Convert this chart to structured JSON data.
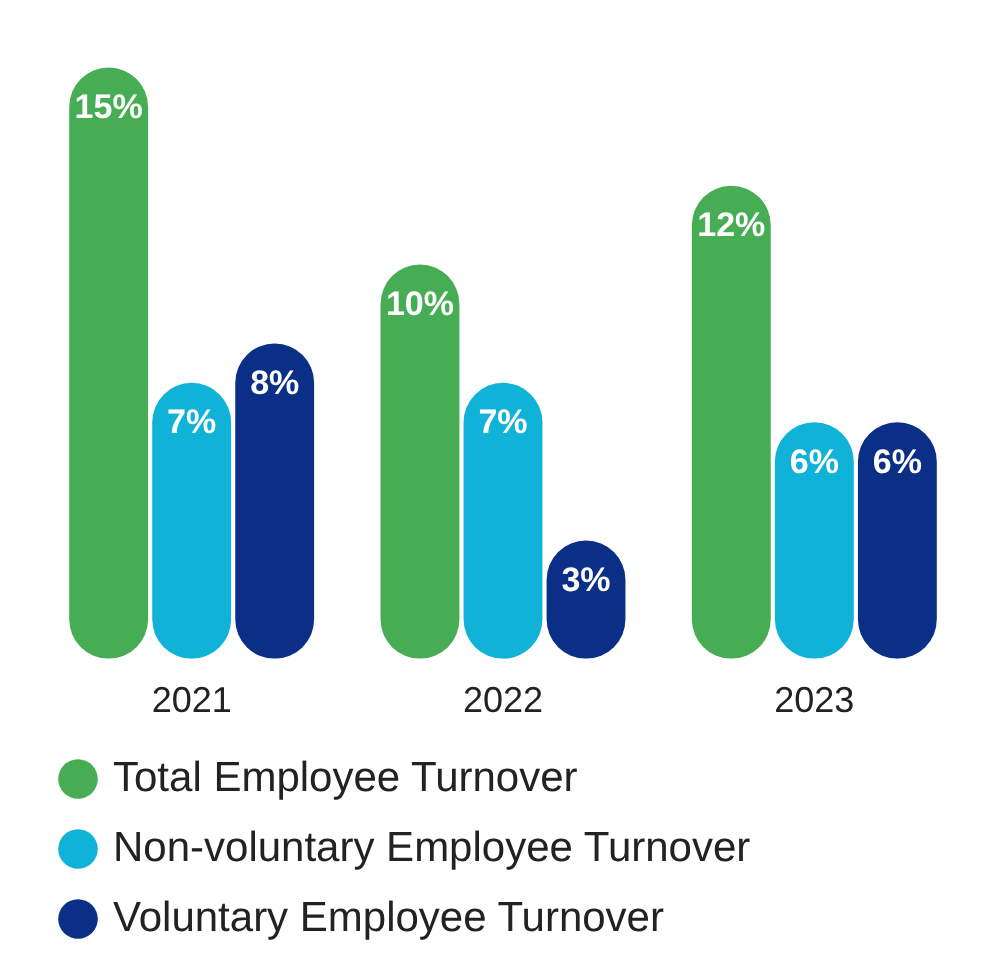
{
  "chart_data": {
    "type": "bar",
    "categories": [
      "2021",
      "2022",
      "2023"
    ],
    "series": [
      {
        "name": "Total Employee Turnover",
        "color": "#47ad55",
        "values": [
          15,
          10,
          12
        ],
        "value_labels": [
          "15%",
          "10%",
          "12%"
        ]
      },
      {
        "name": "Non-voluntary Employee Turnover",
        "color": "#10b2d8",
        "values": [
          7,
          7,
          6
        ],
        "value_labels": [
          "7%",
          "7%",
          "6%"
        ]
      },
      {
        "name": "Voluntary Employee Turnover",
        "color": "#0b2f86",
        "values": [
          8,
          3,
          6
        ],
        "value_labels": [
          "8%",
          "3%",
          "6%"
        ]
      }
    ],
    "legend": "bottom"
  }
}
